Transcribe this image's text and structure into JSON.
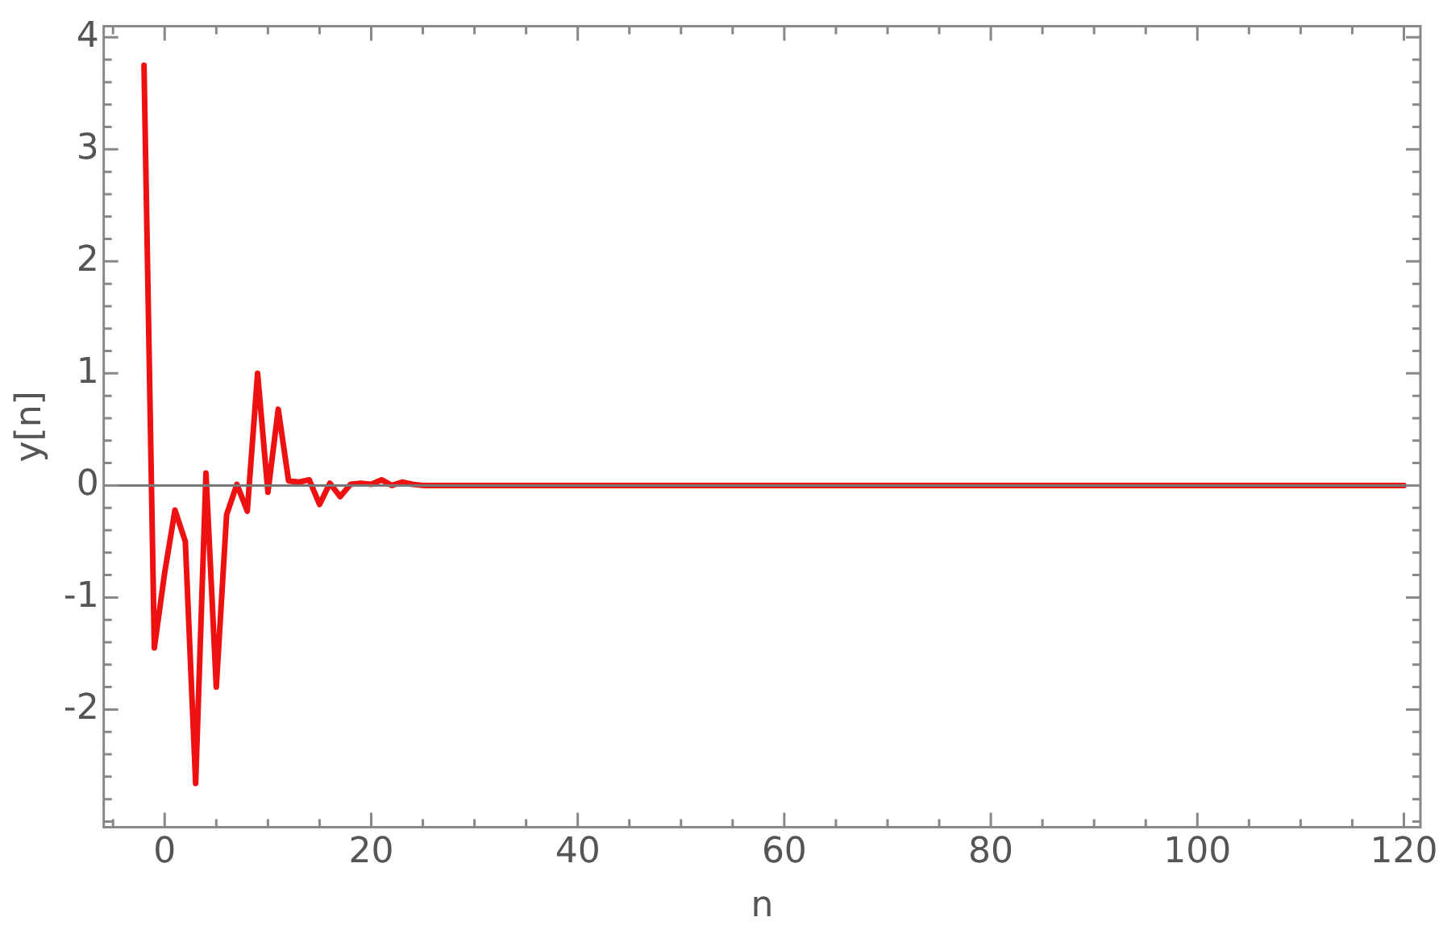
{
  "chart_data": {
    "type": "line",
    "xlabel": "n",
    "ylabel": "y[n]",
    "x": [
      -2,
      -1,
      0,
      1,
      2,
      3,
      4,
      5,
      6,
      7,
      8,
      9,
      10,
      11,
      12,
      13,
      14,
      15,
      16,
      17,
      18,
      19,
      20,
      21,
      22,
      23,
      24,
      25,
      26,
      27,
      28,
      29,
      30,
      31,
      32,
      33,
      34,
      35,
      36,
      37,
      38,
      39,
      40,
      41,
      42,
      43,
      44,
      45,
      46,
      47,
      48,
      49,
      50,
      51,
      52,
      53,
      54,
      55,
      56,
      57,
      58,
      59,
      60,
      61,
      62,
      63,
      64,
      65,
      66,
      67,
      68,
      69,
      70,
      71,
      72,
      73,
      74,
      75,
      76,
      77,
      78,
      79,
      80,
      81,
      82,
      83,
      84,
      85,
      86,
      87,
      88,
      89,
      90,
      91,
      92,
      93,
      94,
      95,
      96,
      97,
      98,
      99,
      100,
      101,
      102,
      103,
      104,
      105,
      106,
      107,
      108,
      109,
      110,
      111,
      112,
      113,
      114,
      115,
      116,
      117,
      118,
      119,
      120
    ],
    "series": [
      {
        "color": "#ee1111",
        "values": [
          3.75,
          -1.45,
          -0.78,
          -0.22,
          -0.5,
          -2.66,
          0.11,
          -1.8,
          -0.26,
          0.01,
          -0.23,
          1.0,
          -0.06,
          0.68,
          0.04,
          0.03,
          0.05,
          -0.17,
          0.02,
          -0.1,
          0.01,
          0.02,
          0.01,
          0.05,
          0,
          0.03,
          0.01,
          0,
          0,
          0,
          0,
          0,
          0,
          0,
          0,
          0,
          0,
          0,
          0,
          0,
          0,
          0,
          0,
          0,
          0,
          0,
          0,
          0,
          0,
          0,
          0,
          0,
          0,
          0,
          0,
          0,
          0,
          0,
          0,
          0,
          0,
          0,
          0,
          0,
          0,
          0,
          0,
          0,
          0,
          0,
          0,
          0,
          0,
          0,
          0,
          0,
          0,
          0,
          0,
          0,
          0,
          0,
          0,
          0,
          0,
          0,
          0,
          0,
          0,
          0,
          0,
          0,
          0,
          0,
          0,
          0,
          0,
          0,
          0,
          0,
          0,
          0,
          0,
          0,
          0,
          0,
          0,
          0,
          0,
          0,
          0,
          0,
          0,
          0,
          0,
          0,
          0,
          0,
          0,
          0,
          0,
          0,
          0
        ]
      }
    ],
    "xlim": [
      -5.9,
      121.6
    ],
    "xticks": [
      {
        "value": -5,
        "label": null
      },
      0,
      {
        "value": 5,
        "label": null
      },
      {
        "value": 10,
        "label": null
      },
      {
        "value": 15,
        "label": null
      },
      20,
      {
        "value": 25,
        "label": null
      },
      {
        "value": 30,
        "label": null
      },
      {
        "value": 35,
        "label": null
      },
      40,
      {
        "value": 45,
        "label": null
      },
      {
        "value": 50,
        "label": null
      },
      {
        "value": 55,
        "label": null
      },
      60,
      {
        "value": 65,
        "label": null
      },
      {
        "value": 70,
        "label": null
      },
      {
        "value": 75,
        "label": null
      },
      80,
      {
        "value": 85,
        "label": null
      },
      {
        "value": 90,
        "label": null
      },
      {
        "value": 95,
        "label": null
      },
      100,
      {
        "value": 105,
        "label": null
      },
      {
        "value": 110,
        "label": null
      },
      {
        "value": 115,
        "label": null
      },
      120
    ],
    "ylim": [
      -3.05,
      4.1
    ],
    "yticks": [
      {
        "value": -3,
        "label": null
      },
      {
        "value": -2.8,
        "label": null
      },
      {
        "value": -2.6,
        "label": null
      },
      {
        "value": -2.4,
        "label": null
      },
      {
        "value": -2.2,
        "label": null
      },
      -2,
      {
        "value": -1.8,
        "label": null
      },
      {
        "value": -1.6,
        "label": null
      },
      {
        "value": -1.4,
        "label": null
      },
      {
        "value": -1.2,
        "label": null
      },
      -1,
      {
        "value": -0.8,
        "label": null
      },
      {
        "value": -0.6,
        "label": null
      },
      {
        "value": -0.4,
        "label": null
      },
      {
        "value": -0.2,
        "label": null
      },
      0,
      {
        "value": 0.2,
        "label": null
      },
      {
        "value": 0.4,
        "label": null
      },
      {
        "value": 0.6,
        "label": null
      },
      {
        "value": 0.8,
        "label": null
      },
      1,
      {
        "value": 1.2,
        "label": null
      },
      {
        "value": 1.4,
        "label": null
      },
      {
        "value": 1.6,
        "label": null
      },
      {
        "value": 1.8,
        "label": null
      },
      2,
      {
        "value": 2.2,
        "label": null
      },
      {
        "value": 2.4,
        "label": null
      },
      {
        "value": 2.6,
        "label": null
      },
      {
        "value": 2.8,
        "label": null
      },
      3,
      {
        "value": 3.2,
        "label": null
      },
      {
        "value": 3.4,
        "label": null
      },
      {
        "value": 3.6,
        "label": null
      },
      {
        "value": 3.8,
        "label": null
      },
      4
    ],
    "ref_lines": [
      {
        "axis": "y",
        "value": 0,
        "color": "#777777"
      }
    ],
    "grid": false,
    "legend": false,
    "marker": "none",
    "line_style": "solid"
  }
}
